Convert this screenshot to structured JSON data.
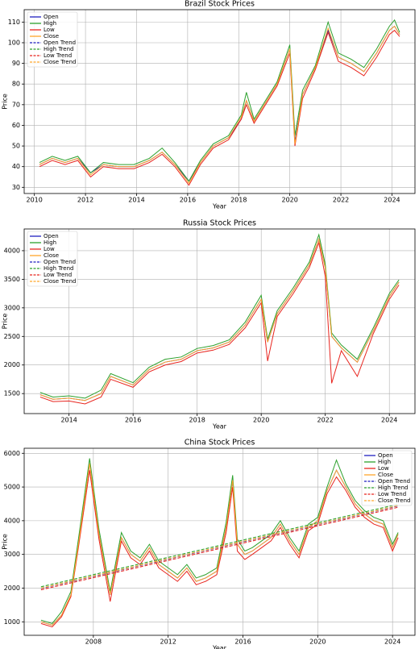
{
  "chart_data": [
    {
      "type": "line",
      "title": "Brazil Stock Prices",
      "x_label": "Year",
      "y_label": "Price",
      "grid": true,
      "legend": "upper left",
      "x": [
        2010.2,
        2010.7,
        2011.2,
        2011.7,
        2012.2,
        2012.7,
        2013.3,
        2013.9,
        2014.5,
        2015.0,
        2015.5,
        2016.05,
        2016.5,
        2017.0,
        2017.6,
        2018.1,
        2018.3,
        2018.6,
        2019.0,
        2019.5,
        2020.0,
        2020.2,
        2020.5,
        2021.0,
        2021.5,
        2021.9,
        2022.4,
        2022.9,
        2023.4,
        2023.9,
        2024.1,
        2024.3
      ],
      "xlim": [
        2009.6,
        2024.9
      ],
      "xticks": [
        2010,
        2012,
        2014,
        2016,
        2018,
        2020,
        2022,
        2024
      ],
      "ylim": [
        27,
        116
      ],
      "yticks": [
        30,
        40,
        50,
        60,
        70,
        80,
        90,
        100,
        110
      ],
      "series": [
        {
          "name": "Open",
          "color": "#1f1fbf",
          "values": [
            41,
            44,
            42,
            44,
            37,
            41,
            40,
            40,
            43,
            47,
            41,
            33,
            42,
            50,
            54,
            63,
            72,
            62,
            70,
            80,
            97,
            52,
            75,
            88,
            106,
            93,
            90,
            86,
            95,
            106,
            108,
            104
          ]
        },
        {
          "name": "High",
          "color": "#2ca02c",
          "values": [
            42,
            45,
            43,
            45,
            37,
            42,
            41,
            41,
            44,
            49,
            42,
            33,
            43,
            51,
            55,
            65,
            76,
            63,
            71,
            81,
            99,
            55,
            77,
            89,
            110,
            95,
            92,
            88,
            97,
            108,
            111,
            105
          ]
        },
        {
          "name": "Low",
          "color": "#e8251f",
          "values": [
            40,
            43,
            41,
            43,
            35,
            40,
            39,
            39,
            42,
            46,
            40,
            31,
            41,
            49,
            53,
            63,
            70,
            61,
            69,
            79,
            95,
            50,
            73,
            87,
            105,
            91,
            88,
            84,
            93,
            104,
            106,
            103
          ]
        },
        {
          "name": "Close",
          "color": "#ffa62b",
          "values": [
            41,
            44,
            42,
            44,
            36,
            41,
            40,
            40,
            43,
            47,
            41,
            32,
            42,
            50,
            54,
            64,
            72,
            62,
            70,
            80,
            97,
            51,
            75,
            88,
            107,
            93,
            90,
            86,
            95,
            106,
            108,
            104
          ]
        },
        {
          "name": "Open Trend",
          "color": "#1f1fbf",
          "dashed": true,
          "x": [],
          "values": []
        },
        {
          "name": "High Trend",
          "color": "#2ca02c",
          "dashed": true,
          "x": [],
          "values": []
        },
        {
          "name": "Low Trend",
          "color": "#e8251f",
          "dashed": true,
          "x": [],
          "values": []
        },
        {
          "name": "Close Trend",
          "color": "#ffa62b",
          "dashed": true,
          "x": [],
          "values": []
        }
      ]
    },
    {
      "type": "line",
      "title": "Russia Stock Prices",
      "x_label": "Year",
      "y_label": "Price",
      "grid": true,
      "legend": "upper left",
      "x": [
        2013.1,
        2013.5,
        2014.0,
        2014.5,
        2015.0,
        2015.3,
        2016.0,
        2016.5,
        2017.0,
        2017.5,
        2018.0,
        2018.5,
        2019.0,
        2019.5,
        2020.0,
        2020.2,
        2020.5,
        2021.0,
        2021.5,
        2021.8,
        2022.0,
        2022.2,
        2022.5,
        2023.0,
        2023.5,
        2024.0,
        2024.3
      ],
      "xlim": [
        2012.6,
        2024.8
      ],
      "xticks": [
        2014,
        2016,
        2018,
        2020,
        2022,
        2024
      ],
      "ylim": [
        1150,
        4380
      ],
      "yticks": [
        1500,
        2000,
        2500,
        3000,
        3500,
        4000
      ],
      "series": [
        {
          "name": "Open",
          "color": "#1f1fbf",
          "values": [
            1480,
            1400,
            1420,
            1380,
            1500,
            1800,
            1650,
            1920,
            2050,
            2100,
            2250,
            2300,
            2400,
            2700,
            3150,
            2400,
            2900,
            3300,
            3750,
            4200,
            3700,
            2500,
            2300,
            2050,
            2600,
            3200,
            3450
          ]
        },
        {
          "name": "High",
          "color": "#2ca02c",
          "values": [
            1520,
            1440,
            1460,
            1420,
            1560,
            1850,
            1690,
            1960,
            2100,
            2140,
            2290,
            2340,
            2440,
            2750,
            3220,
            2450,
            2950,
            3350,
            3800,
            4280,
            3760,
            2560,
            2350,
            2100,
            2650,
            3250,
            3490
          ]
        },
        {
          "name": "Low",
          "color": "#e8251f",
          "values": [
            1440,
            1360,
            1370,
            1320,
            1440,
            1750,
            1610,
            1880,
            2000,
            2060,
            2210,
            2260,
            2360,
            2650,
            3090,
            2070,
            2850,
            3250,
            3700,
            4140,
            3550,
            1680,
            2250,
            1800,
            2550,
            3150,
            3400
          ]
        },
        {
          "name": "Close",
          "color": "#ffa62b",
          "values": [
            1480,
            1400,
            1420,
            1380,
            1500,
            1800,
            1650,
            1920,
            2050,
            2100,
            2250,
            2300,
            2400,
            2700,
            3150,
            2400,
            2900,
            3300,
            3750,
            4200,
            3700,
            2500,
            2300,
            2050,
            2600,
            3200,
            3450
          ]
        },
        {
          "name": "Open Trend",
          "color": "#1f1fbf",
          "dashed": true,
          "x": [],
          "values": []
        },
        {
          "name": "High Trend",
          "color": "#2ca02c",
          "dashed": true,
          "x": [],
          "values": []
        },
        {
          "name": "Low Trend",
          "color": "#e8251f",
          "dashed": true,
          "x": [],
          "values": []
        },
        {
          "name": "Close Trend",
          "color": "#ffa62b",
          "dashed": true,
          "x": [],
          "values": []
        }
      ]
    },
    {
      "type": "line",
      "title": "China Stock Prices",
      "x_label": "Year",
      "y_label": "Price",
      "grid": true,
      "legend": "upper right",
      "x": [
        2005.2,
        2005.8,
        2006.3,
        2006.8,
        2007.2,
        2007.8,
        2008.3,
        2008.9,
        2009.5,
        2010.0,
        2010.5,
        2011.0,
        2011.5,
        2012.0,
        2012.5,
        2013.0,
        2013.5,
        2014.0,
        2014.6,
        2015.1,
        2015.45,
        2015.7,
        2016.1,
        2016.5,
        2017.0,
        2017.5,
        2018.0,
        2018.5,
        2019.0,
        2019.5,
        2020.0,
        2020.5,
        2021.0,
        2021.5,
        2022.0,
        2022.5,
        2023.0,
        2023.5,
        2024.0,
        2024.3
      ],
      "xlim": [
        2004.3,
        2025.2
      ],
      "xticks": [
        2008,
        2012,
        2016,
        2020,
        2024
      ],
      "ylim": [
        600,
        6150
      ],
      "yticks": [
        1000,
        2000,
        3000,
        4000,
        5000,
        6000
      ],
      "series": [
        {
          "name": "Open",
          "color": "#1f1fbf",
          "values": [
            1000,
            900,
            1200,
            1800,
            3300,
            5700,
            3600,
            1800,
            3500,
            3000,
            2800,
            3200,
            2700,
            2500,
            2300,
            2600,
            2200,
            2300,
            2500,
            3800,
            5200,
            3300,
            3000,
            3100,
            3300,
            3500,
            3900,
            3400,
            3000,
            3800,
            4000,
            4900,
            5500,
            5000,
            4500,
            4200,
            4000,
            3900,
            3200,
            3600
          ]
        },
        {
          "name": "High",
          "color": "#2ca02c",
          "values": [
            1050,
            950,
            1300,
            1900,
            3450,
            5850,
            3750,
            1900,
            3650,
            3100,
            2900,
            3300,
            2800,
            2600,
            2400,
            2700,
            2300,
            2400,
            2600,
            3950,
            5350,
            3450,
            3100,
            3200,
            3400,
            3600,
            4000,
            3500,
            3100,
            3900,
            4100,
            5000,
            5800,
            5100,
            4600,
            4300,
            4100,
            4000,
            3300,
            3650
          ]
        },
        {
          "name": "Low",
          "color": "#e8251f",
          "values": [
            950,
            850,
            1150,
            1750,
            3200,
            5500,
            3450,
            1600,
            3400,
            2900,
            2700,
            3100,
            2600,
            2400,
            2200,
            2500,
            2100,
            2200,
            2400,
            3650,
            5000,
            3100,
            2850,
            3000,
            3200,
            3400,
            3800,
            3300,
            2900,
            3700,
            3900,
            4800,
            5300,
            4900,
            4400,
            4100,
            3900,
            3800,
            3100,
            3500
          ]
        },
        {
          "name": "Close",
          "color": "#ffa62b",
          "values": [
            1000,
            900,
            1200,
            1800,
            3300,
            5700,
            3600,
            1800,
            3500,
            3000,
            2800,
            3200,
            2700,
            2500,
            2300,
            2600,
            2200,
            2300,
            2500,
            3800,
            5200,
            3300,
            3000,
            3100,
            3300,
            3500,
            3900,
            3400,
            3000,
            3800,
            4000,
            4900,
            5500,
            5000,
            4500,
            4200,
            4000,
            3900,
            3200,
            3600
          ]
        },
        {
          "name": "Open Trend",
          "color": "#1f1fbf",
          "dashed": true,
          "x": [
            2005.2,
            2024.3
          ],
          "values": [
            1990,
            4440
          ]
        },
        {
          "name": "High Trend",
          "color": "#2ca02c",
          "dashed": true,
          "x": [
            2005.2,
            2024.3
          ],
          "values": [
            2040,
            4490
          ]
        },
        {
          "name": "Low Trend",
          "color": "#e8251f",
          "dashed": true,
          "x": [
            2005.2,
            2024.3
          ],
          "values": [
            1950,
            4400
          ]
        },
        {
          "name": "Close Trend",
          "color": "#ffa62b",
          "dashed": true,
          "x": [
            2005.2,
            2024.3
          ],
          "values": [
            2000,
            4450
          ]
        }
      ]
    }
  ]
}
